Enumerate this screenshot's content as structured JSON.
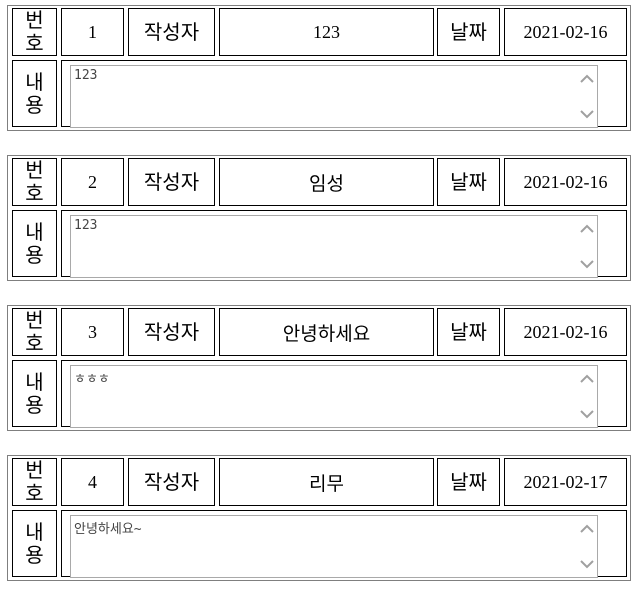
{
  "labels": {
    "number": [
      "번",
      "호"
    ],
    "author": "작성자",
    "date": "날짜",
    "content": [
      "내",
      "용"
    ]
  },
  "posts": [
    {
      "number": "1",
      "author": "123",
      "date": "2021-02-16",
      "content": "123"
    },
    {
      "number": "2",
      "author": "임성",
      "date": "2021-02-16",
      "content": "123"
    },
    {
      "number": "3",
      "author": "안녕하세요",
      "date": "2021-02-16",
      "content": "ㅎㅎㅎ"
    },
    {
      "number": "4",
      "author": "리무",
      "date": "2021-02-17",
      "content": "안녕하세요~"
    }
  ]
}
